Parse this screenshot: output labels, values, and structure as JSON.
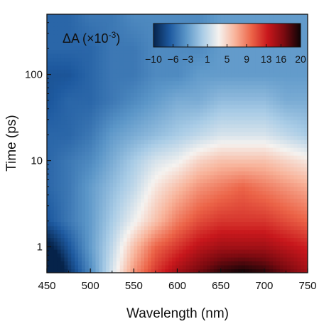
{
  "chart_data": {
    "type": "heatmap",
    "title": "",
    "xlabel": "Wavelength (nm)",
    "ylabel": "Time (ps)",
    "x_unit": "nm",
    "y_unit": "ps",
    "xlim": [
      450,
      750
    ],
    "ylim": [
      0.5,
      500
    ],
    "y_scale": "log",
    "x_ticks": [
      450,
      500,
      550,
      600,
      650,
      700,
      750
    ],
    "y_ticks": [
      1,
      10,
      100
    ],
    "y_tick_labels": [
      "1",
      "10",
      "100"
    ],
    "colorbar": {
      "label_main": "ΔA (×10",
      "label_exp": "-3",
      "label_close": ")",
      "range": [
        -10,
        20
      ],
      "ticks": [
        -10,
        -6,
        -3,
        1,
        5,
        9,
        13,
        16,
        20
      ],
      "tick_labels": [
        "−10",
        "−6",
        "−3",
        "1",
        "5",
        "9",
        "13",
        "16",
        "20"
      ],
      "placement": "top-right",
      "colormap": [
        "#06234a",
        "#1e5aa0",
        "#5b96c8",
        "#a9cce6",
        "#f5f2ef",
        "#f8b39a",
        "#ec6448",
        "#c8171c",
        "#7a0a10",
        "#0b0406"
      ]
    },
    "wavelength_nm": [
      450,
      475,
      500,
      525,
      550,
      575,
      600,
      625,
      650,
      675,
      700,
      725,
      750
    ],
    "time_ps": [
      0.5,
      1,
      2,
      5,
      10,
      20,
      50,
      100,
      200,
      500
    ],
    "delta_A_e-3": [
      [
        -16,
        -9,
        -4,
        2,
        8,
        12,
        15,
        17,
        19,
        20,
        19,
        17,
        15
      ],
      [
        -11,
        -7,
        -3,
        1,
        6,
        10,
        12,
        14,
        15,
        15,
        15,
        14,
        13
      ],
      [
        -7,
        -5,
        -3,
        0,
        3,
        6,
        9,
        11,
        12,
        12,
        12,
        11,
        10
      ],
      [
        -6,
        -5,
        -3,
        -1,
        1,
        4,
        6,
        8,
        9,
        10,
        9,
        8,
        7
      ],
      [
        -6,
        -5,
        -4,
        -2,
        0,
        2,
        3,
        5,
        6,
        6,
        6,
        5,
        4
      ],
      [
        -6,
        -6,
        -5,
        -3,
        -2,
        -1,
        0,
        1,
        2,
        2,
        2,
        1,
        0
      ],
      [
        -7,
        -6,
        -6,
        -5,
        -4,
        -3,
        -2,
        -2,
        -1,
        -1,
        -1,
        -2,
        -2
      ],
      [
        -7,
        -7,
        -6,
        -5,
        -5,
        -4,
        -4,
        -3,
        -3,
        -3,
        -3,
        -3,
        -3
      ],
      [
        -6,
        -6,
        -6,
        -5,
        -5,
        -4,
        -4,
        -4,
        -3,
        -3,
        -3,
        -3,
        -3
      ],
      [
        -6,
        -6,
        -5,
        -5,
        -4,
        -4,
        -4,
        -4,
        -3,
        -3,
        -3,
        -3,
        -3
      ]
    ]
  }
}
